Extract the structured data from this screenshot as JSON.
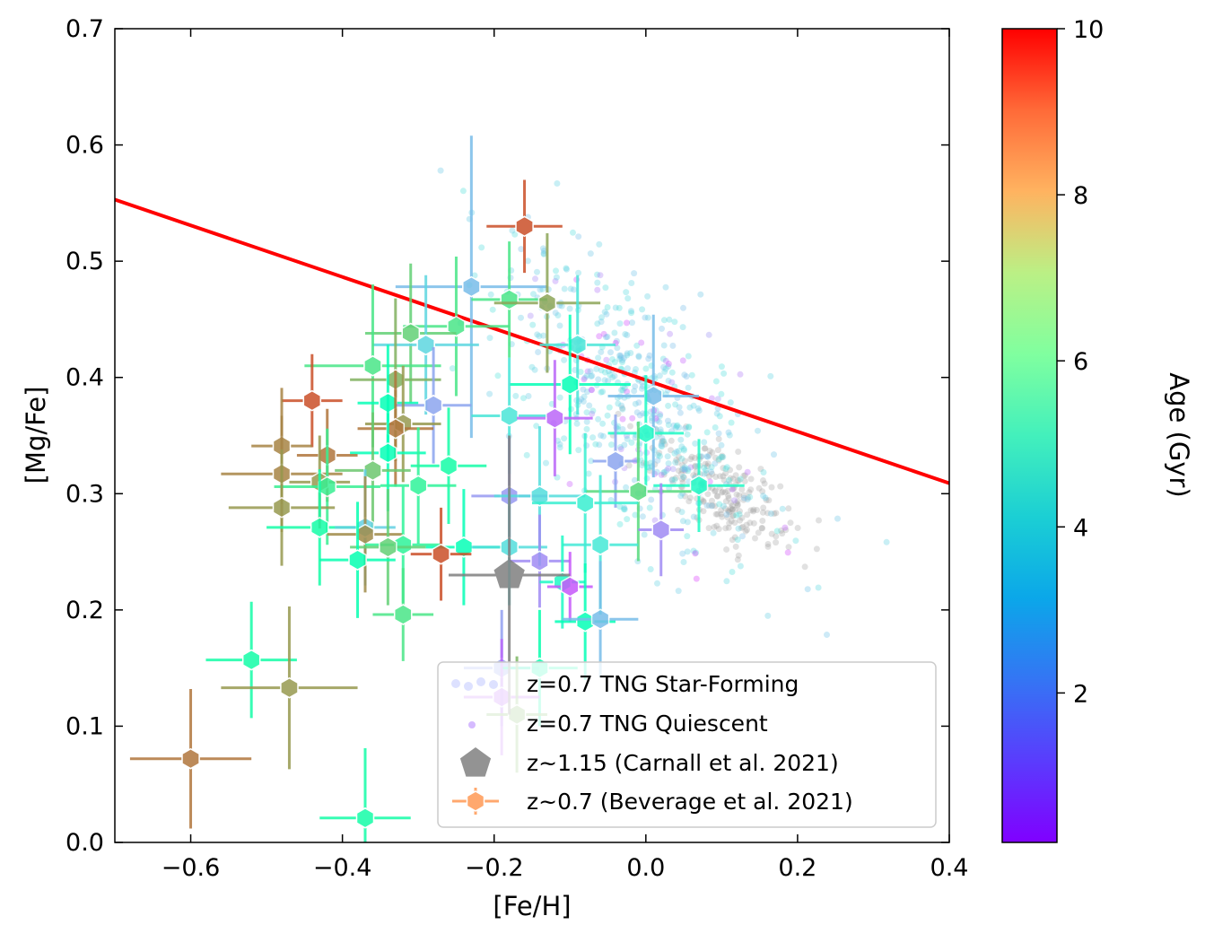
{
  "chart_data": {
    "type": "scatter",
    "xlabel": "[Fe/H]",
    "ylabel": "[Mg/Fe]",
    "xlim": [
      -0.7,
      0.4
    ],
    "ylim": [
      0.0,
      0.7
    ],
    "x_ticks": [
      "−0.6",
      "−0.4",
      "−0.2",
      "0.0",
      "0.2",
      "0.4"
    ],
    "x_tick_values": [
      -0.6,
      -0.4,
      -0.2,
      0.0,
      0.2,
      0.4
    ],
    "y_ticks": [
      "0.0",
      "0.1",
      "0.2",
      "0.3",
      "0.4",
      "0.5",
      "0.6",
      "0.7"
    ],
    "y_tick_values": [
      0.0,
      0.1,
      0.2,
      0.3,
      0.4,
      0.5,
      0.6,
      0.7
    ],
    "grid": false,
    "legend_position": "lower right",
    "colorbar": {
      "label": "Age (Gyr)",
      "range": [
        0.2,
        10
      ],
      "ticks": [
        "2",
        "4",
        "6",
        "8",
        "10"
      ],
      "tick_values": [
        2,
        4,
        6,
        8,
        10
      ],
      "colormap": "rainbow"
    },
    "fit_line": {
      "color": "#ff0000",
      "x": [
        -0.7,
        0.4
      ],
      "y": [
        0.553,
        0.309
      ]
    },
    "series": [
      {
        "name": "z=0.7 TNG Star-Forming",
        "marker": "circle",
        "color": "#22d3ee",
        "cloud": {
          "center": [
            -0.02,
            0.38
          ],
          "spread": [
            0.09,
            0.05
          ],
          "tilt": -0.5,
          "count": 550
        }
      },
      {
        "name": "z=0.7 TNG Quiescent",
        "marker": "circle",
        "color": "#aaaaaa",
        "cloud": {
          "center": [
            0.1,
            0.3
          ],
          "spread": [
            0.05,
            0.02
          ],
          "tilt": -0.4,
          "count": 220
        }
      },
      {
        "name": "z~1.15 (Carnall et al. 2021)",
        "marker": "pentagon",
        "color": "#808080",
        "points": [
          {
            "x": -0.18,
            "y": 0.23,
            "xerr": 0.08,
            "yerr": 0.12
          }
        ]
      },
      {
        "name": "z~0.7 (Beverage et al. 2021)",
        "marker": "hexagon",
        "color": "#ff9955",
        "points": [
          {
            "x": -0.16,
            "y": 0.53,
            "xerr": 0.05,
            "yerr": 0.04,
            "age": 9.0
          },
          {
            "x": -0.23,
            "y": 0.478,
            "xerr": 0.1,
            "yerr": 0.13,
            "age": 2.8
          },
          {
            "x": -0.18,
            "y": 0.467,
            "xerr": 0.05,
            "yerr": 0.05,
            "age": 6.5
          },
          {
            "x": -0.13,
            "y": 0.464,
            "xerr": 0.07,
            "yerr": 0.06,
            "age": 7.8
          },
          {
            "x": -0.25,
            "y": 0.444,
            "xerr": 0.07,
            "yerr": 0.06,
            "age": 6.5
          },
          {
            "x": -0.31,
            "y": 0.438,
            "xerr": 0.06,
            "yerr": 0.06,
            "age": 7.0
          },
          {
            "x": -0.29,
            "y": 0.428,
            "xerr": 0.07,
            "yerr": 0.06,
            "age": 3.3
          },
          {
            "x": -0.09,
            "y": 0.428,
            "xerr": 0.05,
            "yerr": 0.06,
            "age": 3.7
          },
          {
            "x": -0.36,
            "y": 0.41,
            "xerr": 0.09,
            "yerr": 0.07,
            "age": 6.5
          },
          {
            "x": -0.1,
            "y": 0.394,
            "xerr": 0.08,
            "yerr": 0.06,
            "age": 5.0
          },
          {
            "x": -0.33,
            "y": 0.398,
            "xerr": 0.06,
            "yerr": 0.07,
            "age": 7.6
          },
          {
            "x": 0.01,
            "y": 0.384,
            "xerr": 0.06,
            "yerr": 0.07,
            "age": 2.8
          },
          {
            "x": -0.44,
            "y": 0.38,
            "xerr": 0.04,
            "yerr": 0.04,
            "age": 9.0
          },
          {
            "x": -0.34,
            "y": 0.378,
            "xerr": 0.04,
            "yerr": 0.05,
            "age": 5.0
          },
          {
            "x": -0.28,
            "y": 0.376,
            "xerr": 0.05,
            "yerr": 0.05,
            "age": 2.4
          },
          {
            "x": -0.18,
            "y": 0.367,
            "xerr": 0.05,
            "yerr": 0.05,
            "age": 3.7
          },
          {
            "x": -0.12,
            "y": 0.365,
            "xerr": 0.05,
            "yerr": 0.05,
            "age": 1.5
          },
          {
            "x": -0.32,
            "y": 0.36,
            "xerr": 0.05,
            "yerr": 0.05,
            "age": 8.0
          },
          {
            "x": -0.33,
            "y": 0.356,
            "xerr": 0.05,
            "yerr": 0.05,
            "age": 8.5
          },
          {
            "x": 0.0,
            "y": 0.352,
            "xerr": 0.05,
            "yerr": 0.05,
            "age": 4.5
          },
          {
            "x": -0.48,
            "y": 0.341,
            "xerr": 0.04,
            "yerr": 0.05,
            "age": 8.3
          },
          {
            "x": -0.34,
            "y": 0.335,
            "xerr": 0.05,
            "yerr": 0.05,
            "age": 5.0
          },
          {
            "x": -0.42,
            "y": 0.333,
            "xerr": 0.04,
            "yerr": 0.04,
            "age": 8.5
          },
          {
            "x": -0.04,
            "y": 0.328,
            "xerr": 0.03,
            "yerr": 0.04,
            "age": 2.4
          },
          {
            "x": -0.26,
            "y": 0.324,
            "xerr": 0.05,
            "yerr": 0.05,
            "age": 5.5
          },
          {
            "x": -0.36,
            "y": 0.32,
            "xerr": 0.05,
            "yerr": 0.05,
            "age": 7.2
          },
          {
            "x": -0.48,
            "y": 0.317,
            "xerr": 0.08,
            "yerr": 0.05,
            "age": 8.3
          },
          {
            "x": -0.43,
            "y": 0.31,
            "xerr": 0.04,
            "yerr": 0.04,
            "age": 8.0
          },
          {
            "x": 0.07,
            "y": 0.307,
            "xerr": 0.06,
            "yerr": 0.04,
            "age": 4.5
          },
          {
            "x": -0.3,
            "y": 0.307,
            "xerr": 0.05,
            "yerr": 0.05,
            "age": 6.0
          },
          {
            "x": -0.42,
            "y": 0.306,
            "xerr": 0.07,
            "yerr": 0.05,
            "age": 6.2
          },
          {
            "x": -0.01,
            "y": 0.302,
            "xerr": 0.07,
            "yerr": 0.06,
            "age": 6.8
          },
          {
            "x": -0.18,
            "y": 0.298,
            "xerr": 0.05,
            "yerr": 0.05,
            "age": 2.2
          },
          {
            "x": -0.14,
            "y": 0.298,
            "xerr": 0.06,
            "yerr": 0.06,
            "age": 3.5
          },
          {
            "x": -0.08,
            "y": 0.292,
            "xerr": 0.07,
            "yerr": 0.06,
            "age": 4.0
          },
          {
            "x": -0.48,
            "y": 0.288,
            "xerr": 0.07,
            "yerr": 0.05,
            "age": 8.0
          },
          {
            "x": -0.43,
            "y": 0.271,
            "xerr": 0.07,
            "yerr": 0.05,
            "age": 5.5
          },
          {
            "x": -0.37,
            "y": 0.271,
            "xerr": 0.04,
            "yerr": 0.05,
            "age": 3.2
          },
          {
            "x": 0.02,
            "y": 0.269,
            "xerr": 0.03,
            "yerr": 0.04,
            "age": 2.0
          },
          {
            "x": -0.37,
            "y": 0.265,
            "xerr": 0.05,
            "yerr": 0.05,
            "age": 8.2
          },
          {
            "x": -0.06,
            "y": 0.256,
            "xerr": 0.05,
            "yerr": 0.06,
            "age": 3.8
          },
          {
            "x": -0.32,
            "y": 0.256,
            "xerr": 0.05,
            "yerr": 0.05,
            "age": 6.0
          },
          {
            "x": -0.34,
            "y": 0.254,
            "xerr": 0.05,
            "yerr": 0.05,
            "age": 7.0
          },
          {
            "x": -0.24,
            "y": 0.254,
            "xerr": 0.05,
            "yerr": 0.05,
            "age": 5.0
          },
          {
            "x": -0.18,
            "y": 0.254,
            "xerr": 0.05,
            "yerr": 0.05,
            "age": 3.5
          },
          {
            "x": -0.27,
            "y": 0.248,
            "xerr": 0.04,
            "yerr": 0.04,
            "age": 9.0
          },
          {
            "x": -0.38,
            "y": 0.243,
            "xerr": 0.05,
            "yerr": 0.05,
            "age": 5.2
          },
          {
            "x": -0.14,
            "y": 0.242,
            "xerr": 0.04,
            "yerr": 0.04,
            "age": 2.0
          },
          {
            "x": -0.11,
            "y": 0.224,
            "xerr": 0.03,
            "yerr": 0.04,
            "age": 4.5
          },
          {
            "x": -0.1,
            "y": 0.22,
            "xerr": 0.03,
            "yerr": 0.03,
            "age": 1.3
          },
          {
            "x": -0.32,
            "y": 0.196,
            "xerr": 0.04,
            "yerr": 0.04,
            "age": 6.5
          },
          {
            "x": -0.08,
            "y": 0.19,
            "xerr": 0.04,
            "yerr": 0.05,
            "age": 5.0
          },
          {
            "x": -0.06,
            "y": 0.192,
            "xerr": 0.05,
            "yerr": 0.05,
            "age": 2.8
          },
          {
            "x": -0.52,
            "y": 0.157,
            "xerr": 0.06,
            "yerr": 0.05,
            "age": 5.5
          },
          {
            "x": -0.19,
            "y": 0.15,
            "xerr": 0.05,
            "yerr": 0.05,
            "age": 2.3
          },
          {
            "x": -0.14,
            "y": 0.15,
            "xerr": 0.05,
            "yerr": 0.05,
            "age": 5.3
          },
          {
            "x": -0.47,
            "y": 0.133,
            "xerr": 0.09,
            "yerr": 0.07,
            "age": 8.0
          },
          {
            "x": -0.19,
            "y": 0.125,
            "xerr": 0.05,
            "yerr": 0.05,
            "age": 1.5
          },
          {
            "x": -0.17,
            "y": 0.11,
            "xerr": 0.04,
            "yerr": 0.05,
            "age": 7.5
          },
          {
            "x": -0.6,
            "y": 0.072,
            "xerr": 0.08,
            "yerr": 0.06,
            "age": 8.5
          },
          {
            "x": -0.37,
            "y": 0.021,
            "xerr": 0.06,
            "yerr": 0.06,
            "age": 5.5
          }
        ]
      }
    ]
  }
}
